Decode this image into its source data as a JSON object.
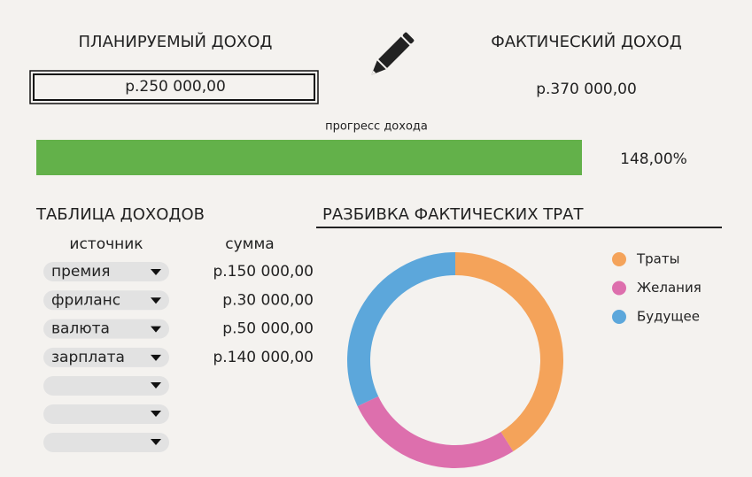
{
  "header": {
    "planned_label": "ПЛАНИРУЕМЫЙ ДОХОД",
    "planned_value": "р.250 000,00",
    "actual_label": "ФАКТИЧЕСКИЙ ДОХОД",
    "actual_value": "р.370 000,00"
  },
  "progress": {
    "label": "прогресс дохода",
    "value_text": "148,00%"
  },
  "table": {
    "title": "ТАБЛИЦА ДОХОДОВ",
    "columns": [
      "источник",
      "сумма"
    ],
    "rows": [
      [
        "премия",
        "р.150 000,00"
      ],
      [
        "фриланс",
        "р.30 000,00"
      ],
      [
        "валюта",
        "р.50 000,00"
      ],
      [
        "зарплата",
        "р.140 000,00"
      ]
    ]
  },
  "chart_data": {
    "type": "pie",
    "title": "РАЗБИВКА ФАКТИЧЕСКИХ ТРАТ",
    "donut": true,
    "categories": [
      "Траты",
      "Желания",
      "Будущее"
    ],
    "values": [
      41,
      27,
      32
    ],
    "colors": [
      "#f4a35a",
      "#dd6fad",
      "#5ca7db"
    ]
  }
}
